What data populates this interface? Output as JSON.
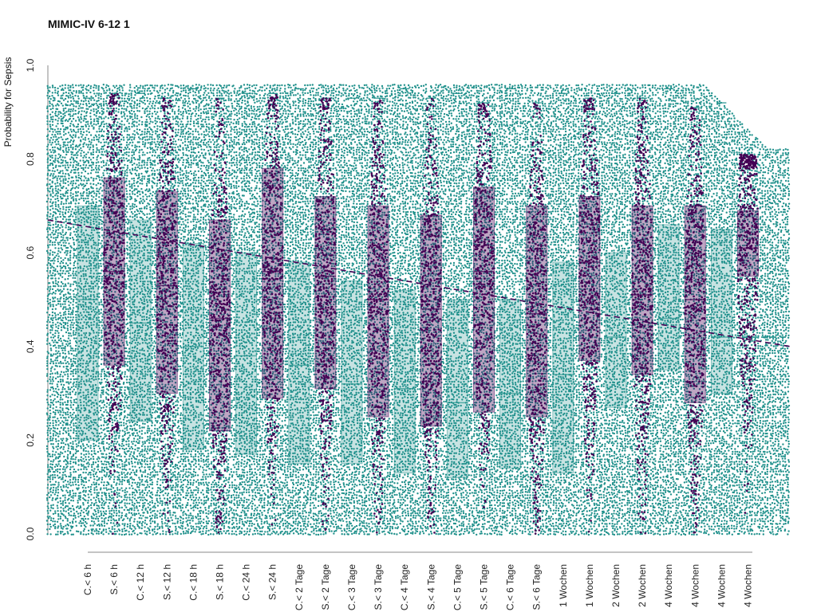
{
  "chart_data": {
    "type": "scatter",
    "title": "MIMIC-IV 6-12 1",
    "xlabel": "",
    "ylabel": "Probability for Sepsis",
    "ylim": [
      0,
      1
    ],
    "yticks": [
      "0.0",
      "0.2",
      "0.4",
      "0.6",
      "0.8",
      "1.0"
    ],
    "categories": [
      "C.< 6 h",
      "S.< 6 h",
      "C.< 12 h",
      "S.< 12 h",
      "C.< 18 h",
      "S.< 18 h",
      "C.< 24 h",
      "S.< 24 h",
      "C.< 2 Tage",
      "S.< 2 Tage",
      "C.< 3 Tage",
      "S.< 3 Tage",
      "C.< 4 Tage",
      "S.< 4 Tage",
      "C.< 5 Tage",
      "S.< 5 Tage",
      "C.< 6 Tage",
      "S.< 6 Tage",
      "1 Wochen",
      "1 Wochen",
      "2 Wochen",
      "2 Wochen",
      "4 Wochen",
      "4 Wochen",
      "4 Wochen",
      "4 Wochen"
    ],
    "series_colors": {
      "control": "#21918c",
      "sepsis": "#440154"
    },
    "max_values": [
      0.93,
      0.94,
      0.94,
      0.93,
      0.95,
      0.93,
      0.94,
      0.94,
      0.95,
      0.93,
      0.93,
      0.93,
      0.95,
      0.93,
      0.94,
      0.92,
      0.95,
      0.92,
      0.94,
      0.93,
      0.94,
      0.93,
      0.95,
      0.91,
      0.92,
      0.81
    ],
    "boxes": {
      "q1": [
        0.2,
        0.36,
        0.24,
        0.3,
        0.18,
        0.22,
        0.17,
        0.29,
        0.15,
        0.31,
        0.15,
        0.25,
        0.13,
        0.23,
        0.12,
        0.26,
        0.14,
        0.25,
        0.13,
        0.37,
        0.27,
        0.34,
        0.35,
        0.28,
        0.3,
        0.55
      ],
      "median": [
        0.5,
        0.56,
        0.45,
        0.53,
        0.4,
        0.46,
        0.38,
        0.56,
        0.36,
        0.55,
        0.32,
        0.5,
        0.31,
        0.48,
        0.28,
        0.56,
        0.3,
        0.47,
        0.34,
        0.58,
        0.42,
        0.51,
        0.46,
        0.5,
        0.42,
        0.61
      ],
      "q3": [
        0.7,
        0.76,
        0.67,
        0.73,
        0.62,
        0.67,
        0.6,
        0.78,
        0.58,
        0.72,
        0.54,
        0.7,
        0.52,
        0.68,
        0.5,
        0.74,
        0.5,
        0.7,
        0.58,
        0.72,
        0.6,
        0.7,
        0.66,
        0.7,
        0.65,
        0.69
      ]
    },
    "trend_sepsis": {
      "y_start": 0.67,
      "y_end": 0.4
    },
    "trend_control": {
      "y_start": 0.42,
      "y_end": 0.42
    },
    "grid": false,
    "legend": "none"
  }
}
